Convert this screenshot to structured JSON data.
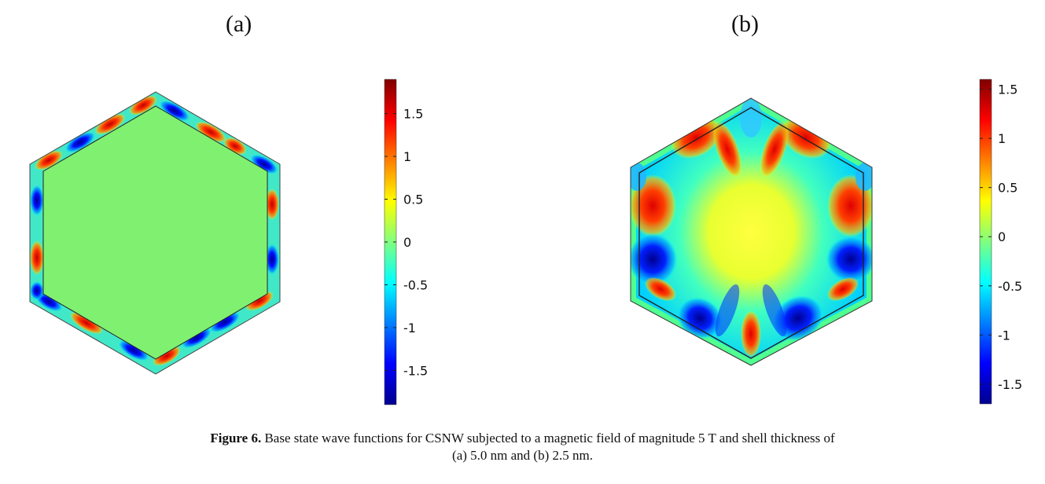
{
  "panels": [
    {
      "id": "a",
      "label": "(a)",
      "colorbar": {
        "min": -1.9,
        "max": 1.9,
        "ticks": [
          {
            "value": 1.5,
            "label": "1.5"
          },
          {
            "value": 1.0,
            "label": "1"
          },
          {
            "value": 0.5,
            "label": "0.5"
          },
          {
            "value": 0.0,
            "label": "0"
          },
          {
            "value": -0.5,
            "label": "-0.5"
          },
          {
            "value": -1.0,
            "label": "-1"
          },
          {
            "value": -1.5,
            "label": "-1.5"
          }
        ]
      }
    },
    {
      "id": "b",
      "label": "(b)",
      "colorbar": {
        "min": -1.7,
        "max": 1.6,
        "ticks": [
          {
            "value": 1.5,
            "label": "1.5"
          },
          {
            "value": 1.0,
            "label": "1"
          },
          {
            "value": 0.5,
            "label": "0.5"
          },
          {
            "value": 0.0,
            "label": "0"
          },
          {
            "value": -0.5,
            "label": "-0.5"
          },
          {
            "value": -1.0,
            "label": "-1"
          },
          {
            "value": -1.5,
            "label": "-1.5"
          }
        ]
      }
    }
  ],
  "colors": {
    "jet": [
      "#00008f",
      "#0000ff",
      "#00ffff",
      "#80ff80",
      "#ffff00",
      "#ff0000",
      "#800000"
    ],
    "outline": "#222222"
  },
  "caption": {
    "bold": "Figure 6.",
    "line1": " Base state wave functions for CSNW subjected to a magnetic field of magnitude 5 T and shell thickness of",
    "line2": "(a) 5.0 nm and (b) 2.5 nm."
  }
}
